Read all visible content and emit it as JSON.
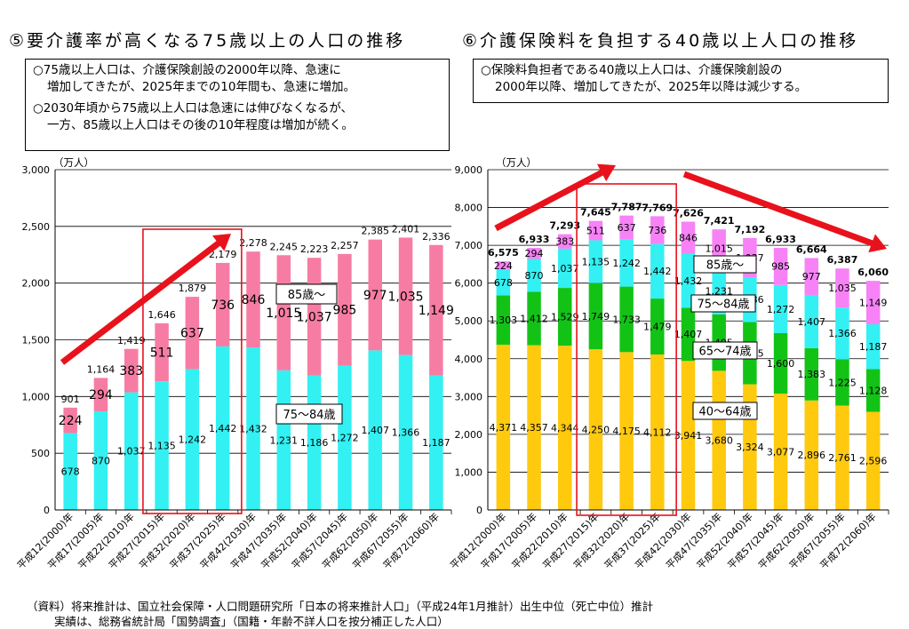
{
  "charts": [
    {
      "title": "⑤要介護率が高くなる75歳以上の人口の推移",
      "notes": [
        "○75歳以上人口は、介護保険創設の2000年以降、急速に増加してきたが、2025年までの10年間も、急速に増加。",
        "○2030年頃から75歳以上人口は急速には伸びなくなるが、一方、85歳以上人口はその後の10年程度は増加が続く。"
      ],
      "notes_wrapped": [
        [
          "○75歳以上人口は、介護保険創設の2000年以降、急速に",
          "増加してきたが、2025年までの10年間も、急速に増加。"
        ],
        [
          "○2030年頃から75歳以上人口は急速には伸びなくなるが、",
          "一方、85歳以上人口はその後の10年程度は増加が続く。"
        ]
      ]
    },
    {
      "title": "⑥介護保険料を負担する40歳以上人口の推移",
      "notes": [
        "○保険料負担者である40歳以上人口は、介護保険創設の2000年以降、増加してきたが、2025年以降は減少する。"
      ],
      "notes_wrapped": [
        [
          "○保険料負担者である40歳以上人口は、介護保険創設の",
          "2000年以降、増加してきたが、2025年以降は減少する。"
        ]
      ]
    }
  ],
  "chart_data": [
    {
      "type": "bar",
      "stacked": true,
      "unit_label": "（万人）",
      "categories": [
        "平成12(2000)年",
        "平成17(2005)年",
        "平成22(2010)年",
        "平成27(2015)年",
        "平成32(2020)年",
        "平成37(2025)年",
        "平成42(2030)年",
        "平成47(2035)年",
        "平成52(2040)年",
        "平成57(2045)年",
        "平成62(2050)年",
        "平成67(2055)年",
        "平成72(2060)年"
      ],
      "ylim": [
        0,
        3000
      ],
      "yticks": [
        0,
        500,
        1000,
        1500,
        2000,
        2500,
        3000
      ],
      "ytick_labels": [
        "0",
        "500",
        "1,000",
        "1,500",
        "2,000",
        "2,500",
        "3,000"
      ],
      "series": [
        {
          "name": "75～84歳",
          "color": "#33f0f2",
          "values": [
            678,
            870,
            1037,
            1135,
            1242,
            1442,
            1432,
            1231,
            1186,
            1272,
            1407,
            1366,
            1187
          ],
          "labels": [
            "678",
            "870",
            "1,037",
            "1,135",
            "1,242",
            "1,442",
            "1,432",
            "1,231",
            "1,186",
            "1,272",
            "1,407",
            "1,366",
            "1,187"
          ]
        },
        {
          "name": "85歳～",
          "color": "#f77ca4",
          "values": [
            224,
            294,
            383,
            511,
            637,
            736,
            846,
            1015,
            1037,
            985,
            977,
            1035,
            1149
          ],
          "labels": [
            "224",
            "294",
            "383",
            "511",
            "637",
            "736",
            "846",
            "1,015",
            "1,037",
            "985",
            "977",
            "1,035",
            "1,149"
          ]
        }
      ],
      "totals": [
        901,
        1164,
        1419,
        1646,
        1879,
        2179,
        2278,
        2245,
        2223,
        2257,
        2385,
        2401,
        2336
      ],
      "total_labels": [
        "901",
        "1,164",
        "1,419",
        "1,646",
        "1,879",
        "2,179",
        "2,278",
        "2,245",
        "2,223",
        "2,257",
        "2,385",
        "2,401",
        "2,336"
      ],
      "highlight_categories": [
        3,
        5
      ]
    },
    {
      "type": "bar",
      "stacked": true,
      "unit_label": "（万人）",
      "categories": [
        "平成12(2000)年",
        "平成17(2005)年",
        "平成22(2010)年",
        "平成27(2015)年",
        "平成32(2020)年",
        "平成37(2025)年",
        "平成42(2030)年",
        "平成47(2035)年",
        "平成52(2040)年",
        "平成57(2045)年",
        "平成62(2050)年",
        "平成67(2055)年",
        "平成72(2060)年"
      ],
      "ylim": [
        0,
        9000
      ],
      "yticks": [
        0,
        1000,
        2000,
        3000,
        4000,
        5000,
        6000,
        7000,
        8000,
        9000
      ],
      "ytick_labels": [
        "0",
        "1,000",
        "2,000",
        "3,000",
        "4,000",
        "5,000",
        "6,000",
        "7,000",
        "8,000",
        "9,000"
      ],
      "series": [
        {
          "name": "40～64歳",
          "color": "#ffc90e",
          "values": [
            4371,
            4357,
            4344,
            4250,
            4175,
            4112,
            3941,
            3680,
            3324,
            3077,
            2896,
            2761,
            2596
          ],
          "labels": [
            "4,371",
            "4,357",
            "4,344",
            "4,250",
            "4,175",
            "4,112",
            "3,941",
            "3,680",
            "3,324",
            "3,077",
            "2,896",
            "2,761",
            "2,596"
          ]
        },
        {
          "name": "65～74歳",
          "color": "#12c316",
          "values": [
            1303,
            1412,
            1529,
            1749,
            1733,
            1479,
            1407,
            1495,
            1645,
            1600,
            1383,
            1225,
            1128
          ],
          "labels": [
            "1,303",
            "1,412",
            "1,529",
            "1,749",
            "1,733",
            "1,479",
            "1,407",
            "1,495",
            "1,645",
            "1,600",
            "1,383",
            "1,225",
            "1,128"
          ]
        },
        {
          "name": "75～84歳",
          "color": "#33f0f2",
          "values": [
            678,
            870,
            1037,
            1135,
            1242,
            1442,
            1432,
            1231,
            1186,
            1272,
            1407,
            1366,
            1187
          ],
          "labels": [
            "678",
            "870",
            "1,037",
            "1,135",
            "1,242",
            "1,442",
            "1,432",
            "1,231",
            "1,186",
            "1,272",
            "1,407",
            "1,366",
            "1,187"
          ]
        },
        {
          "name": "85歳～",
          "color": "#f782f6",
          "values": [
            224,
            294,
            383,
            511,
            637,
            736,
            846,
            1015,
            1037,
            985,
            977,
            1035,
            1149
          ],
          "labels": [
            "224",
            "294",
            "383",
            "511",
            "637",
            "736",
            "846",
            "1,015",
            "1,037",
            "985",
            "977",
            "1,035",
            "1,149"
          ]
        }
      ],
      "totals": [
        6575,
        6933,
        7293,
        7645,
        7787,
        7769,
        7626,
        7421,
        7192,
        6933,
        6664,
        6387,
        6060
      ],
      "total_labels": [
        "6,575",
        "6,933",
        "7,293",
        "7,645",
        "7,787",
        "7,769",
        "7,626",
        "7,421",
        "7,192",
        "6,933",
        "6,664",
        "6,387",
        "6,060"
      ],
      "highlight_categories": [
        3,
        5
      ]
    }
  ],
  "footnote": {
    "source_line": "（資料）将来推計は、国立社会保障・人口問題研究所「日本の将来推計人口」（平成24年1月推計）出生中位（死亡中位）推計",
    "actual_line": "実績は、総務省統計局「国勢調査」（国籍・年齢不詳人口を按分補正した人口）"
  },
  "colors": {
    "arrow": "#e8121c",
    "highlight_box": "#e8121c",
    "axis": "#000000",
    "grid": "#000000"
  }
}
